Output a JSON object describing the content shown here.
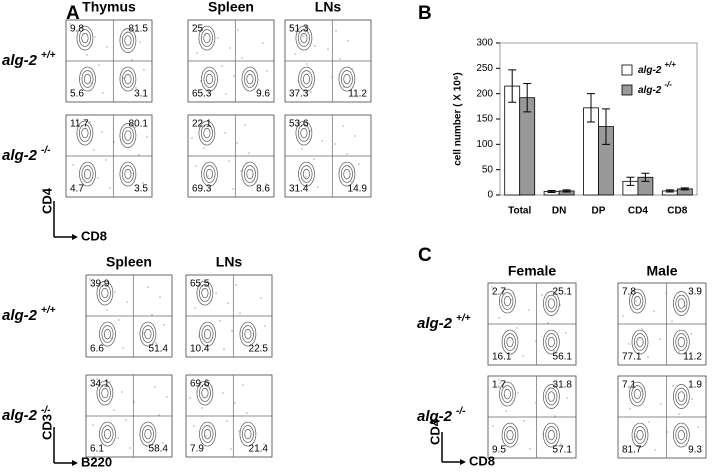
{
  "panel_a": {
    "label": "A",
    "columns": [
      "Thymus",
      "Spleen",
      "LNs"
    ],
    "rows": [
      {
        "name": "alg-2",
        "genotype": "+/+"
      },
      {
        "name": "alg-2",
        "genotype": "-/-"
      }
    ],
    "plots": [
      [
        {
          "tl": 9.8,
          "tr": 81.5,
          "bl": 5.6,
          "br": 3.1
        },
        {
          "tl": 25,
          "bl": 65.3,
          "br": 9.6
        },
        {
          "tl": 51.3,
          "bl": 37.3,
          "br": 11.2
        }
      ],
      [
        {
          "tl": 11.7,
          "tr": 80.1,
          "bl": 4.7,
          "br": 3.5
        },
        {
          "tl": 22.1,
          "bl": 69.3,
          "br": 8.6
        },
        {
          "tl": 53.6,
          "bl": 31.4,
          "br": 14.9
        }
      ]
    ],
    "y_axis": "CD4",
    "x_axis": "CD8"
  },
  "panel_a_lower": {
    "columns": [
      "Spleen",
      "LNs"
    ],
    "rows": [
      {
        "name": "alg-2",
        "genotype": "+/+"
      },
      {
        "name": "alg-2",
        "genotype": "-/-"
      }
    ],
    "plots": [
      [
        {
          "tl": 39.9,
          "bl": 6.6,
          "br": 51.4
        },
        {
          "tl": 65.5,
          "bl": 10.4,
          "br": 22.5
        }
      ],
      [
        {
          "tl": 34.1,
          "bl": 6.1,
          "br": 58.4
        },
        {
          "tl": 69.6,
          "bl": 7.9,
          "br": 21.4
        }
      ]
    ],
    "y_axis": "CD3",
    "x_axis": "B220"
  },
  "chart_data": {
    "type": "bar",
    "label": "B",
    "y_label": "cell number ( X 10⁶)",
    "categories": [
      "Total",
      "DN",
      "DP",
      "CD4",
      "CD8"
    ],
    "series": [
      {
        "name": "alg-2",
        "genotype": "+/+",
        "color": "#ffffff",
        "values": [
          215,
          7,
          172,
          27,
          8
        ],
        "errors": [
          32,
          2,
          28,
          8,
          2
        ]
      },
      {
        "name": "alg-2",
        "genotype": "-/-",
        "color": "#999999",
        "values": [
          192,
          8,
          135,
          35,
          12
        ],
        "errors": [
          28,
          2,
          35,
          8,
          2
        ]
      }
    ],
    "ylim": [
      0,
      300
    ],
    "yticks": [
      0,
      50,
      100,
      150,
      200,
      250,
      300
    ]
  },
  "panel_c": {
    "label": "C",
    "columns": [
      "Female",
      "Male"
    ],
    "rows": [
      {
        "name": "alg-2",
        "genotype": "+/+"
      },
      {
        "name": "alg-2",
        "genotype": "-/-"
      }
    ],
    "plots": [
      [
        {
          "tl": 2.7,
          "tr": 25.1,
          "bl": 16.1,
          "br": 56.1
        },
        {
          "tl": 7.8,
          "tr": 3.9,
          "bl": 77.1,
          "br": 11.2
        }
      ],
      [
        {
          "tl": 1.7,
          "tr": 31.8,
          "bl": 9.5,
          "br": 57.1
        },
        {
          "tl": 7.1,
          "tr": 1.9,
          "bl": 81.7,
          "br": 9.3
        }
      ]
    ],
    "y_axis": "CD4",
    "x_axis": "CD8"
  }
}
